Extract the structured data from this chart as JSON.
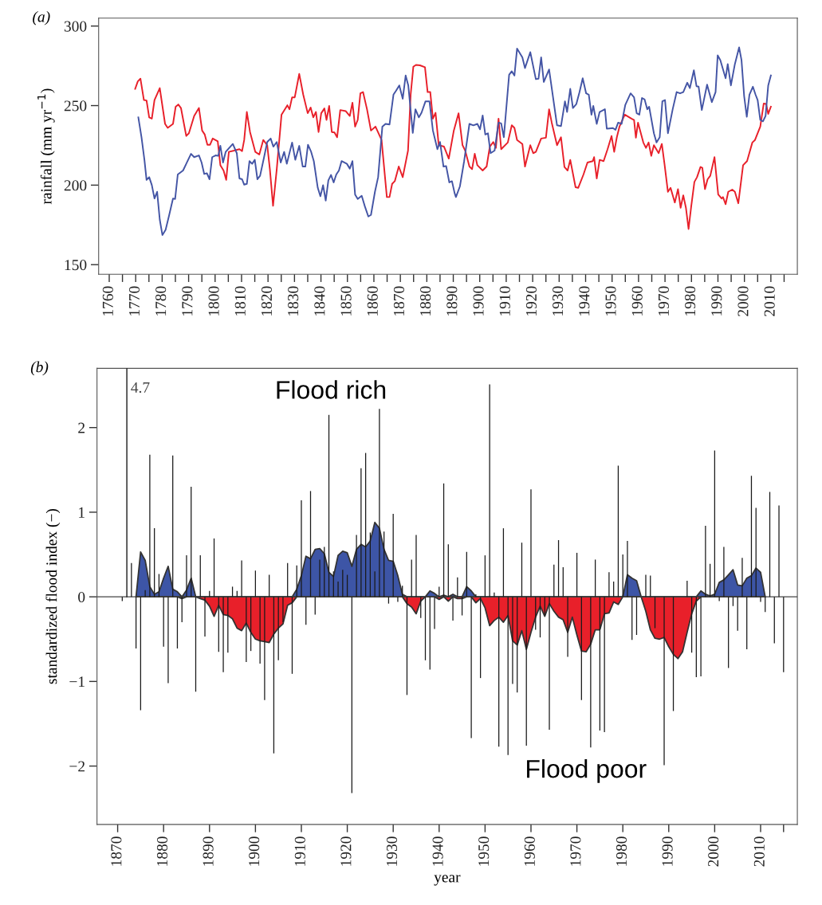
{
  "chart_data": [
    {
      "type": "line",
      "title": "(a)",
      "ylabel": "rainfall (mm yr$^{−1}$)",
      "xlim": [
        1756,
        2020
      ],
      "ylim": [
        144,
        305
      ],
      "xticks": [
        1760,
        {
          "value": 1765,
          "label": null
        },
        1770,
        {
          "value": 1775,
          "label": null
        },
        1780,
        {
          "value": 1785,
          "label": null
        },
        1790,
        {
          "value": 1795,
          "label": null
        },
        1800,
        {
          "value": 1805,
          "label": null
        },
        1810,
        {
          "value": 1815,
          "label": null
        },
        1820,
        {
          "value": 1825,
          "label": null
        },
        1830,
        {
          "value": 1835,
          "label": null
        },
        1840,
        {
          "value": 1845,
          "label": null
        },
        1850,
        {
          "value": 1855,
          "label": null
        },
        1860,
        {
          "value": 1865,
          "label": null
        },
        1870,
        {
          "value": 1875,
          "label": null
        },
        1880,
        {
          "value": 1885,
          "label": null
        },
        1890,
        {
          "value": 1895,
          "label": null
        },
        1900,
        {
          "value": 1905,
          "label": null
        },
        1910,
        {
          "value": 1915,
          "label": null
        },
        1920,
        {
          "value": 1925,
          "label": null
        },
        1930,
        {
          "value": 1935,
          "label": null
        },
        1940,
        {
          "value": 1945,
          "label": null
        },
        1950,
        {
          "value": 1955,
          "label": null
        },
        1960,
        {
          "value": 1965,
          "label": null
        },
        1970,
        {
          "value": 1975,
          "label": null
        },
        1980,
        {
          "value": 1985,
          "label": null
        },
        1990,
        {
          "value": 1995,
          "label": null
        },
        2000,
        {
          "value": 2005,
          "label": null
        },
        2010,
        {
          "value": 2015,
          "label": null
        }
      ],
      "yticks": [
        150,
        200,
        250,
        300
      ],
      "series": [
        {
          "color": "#e8202a",
          "x": [
            1769.8,
            1770.8,
            1771.8,
            1773.1,
            1774.1,
            1775.1,
            1776.1,
            1777.1,
            1779.1,
            1781.1,
            1782.1,
            1784.1,
            1785.1,
            1786.1,
            1787.1,
            1789.1,
            1790.1,
            1792.1,
            1793.9,
            1795.1,
            1796.1,
            1797.1,
            1798.1,
            1799.1,
            1801.0,
            1802.0,
            1803.2,
            1804.2,
            1805.2,
            1807.2,
            1809.2,
            1810.2,
            1811.0,
            1812.0,
            1813.2,
            1815.2,
            1816.7,
            1818.2,
            1819.7,
            1820.7,
            1821.9,
            1823.3,
            1825.1,
            1827.3,
            1828.1,
            1829.1,
            1830.1,
            1831.8,
            1833.3,
            1835.0,
            1836.1,
            1837.1,
            1838.1,
            1839.1,
            1840.1,
            1841.3,
            1842.1,
            1843.1,
            1844.1,
            1845.1,
            1846.1,
            1847.3,
            1849.4,
            1850.9,
            1851.9,
            1852.9,
            1853.9,
            1854.9,
            1855.9,
            1857.4,
            1858.9,
            1860.6,
            1862.9,
            1864.9,
            1865.9,
            1866.9,
            1867.9,
            1869.4,
            1870.9,
            1872.9,
            1873.9,
            1874.9,
            1875.9,
            1877.4,
            1879.3,
            1880.3,
            1881.3,
            1882.3,
            1883.3,
            1884.5,
            1886.5,
            1888.3,
            1890.2,
            1892.0,
            1893.5,
            1894.5,
            1896.1,
            1897.1,
            1898.1,
            1899.1,
            1901.1,
            1902.6,
            1903.8,
            1905.1,
            1906.1,
            1907.1,
            1908.1,
            1910.6,
            1912.1,
            1913.1,
            1914.1,
            1916.1,
            1917.1,
            1919.1,
            1920.2,
            1921.2,
            1923.2,
            1925.0,
            1926.2,
            1927.2,
            1929.2,
            1930.7,
            1932.0,
            1933.2,
            1934.2,
            1936.2,
            1937.2,
            1939.2,
            1940.7,
            1942.7,
            1943.2,
            1944.2,
            1945.3,
            1946.8,
            1948.3,
            1949.8,
            1950.8,
            1951.8,
            1952.8,
            1954.8,
            1957.3,
            1958.3,
            1959.0,
            1959.8,
            1961.8,
            1962.8,
            1963.8,
            1964.8,
            1965.8,
            1967.6,
            1968.8,
            1969.8,
            1971.1,
            1972.1,
            1973.7,
            1974.9,
            1975.9,
            1976.9,
            1977.9,
            1978.9,
            1979.9,
            1981.1,
            1982.1,
            1983.4,
            1984.1,
            1985.1,
            1986.1,
            1987.1,
            1988.7,
            1990.1,
            1991.4,
            1991.9,
            1992.9,
            1993.9,
            1995.4,
            1996.4,
            1997.7,
            1999.5,
            2001.0,
            2003.0,
            2004.0,
            2006.0,
            2007.3,
            2008.2,
            2009.0,
            2010.0
          ],
          "values": [
            260.5,
            265.2,
            266.9,
            253.5,
            253.2,
            242.6,
            241.8,
            253.5,
            261.0,
            238.5,
            236.0,
            238.5,
            249.3,
            250.7,
            248.5,
            230.9,
            232.6,
            243.5,
            248.5,
            234.3,
            231.8,
            225.4,
            225.4,
            229.3,
            227.6,
            212.5,
            209.2,
            203.3,
            220.9,
            221.7,
            222.6,
            221.4,
            228.4,
            246.0,
            233.4,
            220.9,
            219.2,
            228.4,
            225.1,
            210.0,
            187.0,
            210.0,
            244.3,
            250.2,
            247.7,
            255.2,
            255.2,
            269.9,
            256.9,
            245.2,
            248.8,
            242.6,
            246.0,
            233.4,
            245.2,
            248.2,
            241.0,
            249.8,
            233.4,
            233.1,
            230.1,
            247.2,
            246.5,
            243.5,
            251.8,
            236.8,
            241.0,
            257.7,
            258.5,
            247.7,
            234.3,
            236.8,
            228.4,
            192.5,
            192.5,
            200.8,
            202.5,
            211.7,
            205.0,
            221.7,
            256.9,
            274.4,
            275.6,
            275.3,
            274.1,
            258.5,
            258.5,
            241.8,
            245.5,
            225.1,
            224.2,
            216.7,
            234.3,
            245.2,
            225.1,
            221.7,
            211.7,
            210.0,
            219.7,
            212.5,
            209.2,
            211.7,
            224.2,
            227.1,
            223.4,
            241.8,
            222.6,
            226.8,
            237.6,
            236.0,
            228.4,
            225.9,
            211.7,
            225.1,
            220.1,
            220.9,
            229.3,
            229.8,
            247.7,
            239.3,
            225.1,
            230.1,
            211.4,
            209.2,
            215.9,
            198.7,
            198.3,
            206.7,
            214.2,
            215.1,
            217.6,
            204.2,
            215.9,
            215.1,
            222.6,
            230.9,
            220.9,
            230.1,
            236.8,
            244.3,
            241.8,
            241.0,
            229.8,
            239.3,
            226.8,
            223.4,
            226.8,
            218.4,
            225.1,
            220.1,
            225.9,
            213.4,
            195.8,
            198.3,
            189.1,
            197.5,
            185.8,
            193.6,
            185.8,
            172.4,
            186.6,
            202.0,
            205.0,
            211.4,
            210.9,
            197.5,
            203.7,
            205.9,
            217.6,
            194.1,
            191.6,
            192.5,
            188.0,
            195.8,
            197.2,
            195.8,
            188.6,
            212.5,
            215.1,
            226.8,
            228.4,
            236.8,
            251.3,
            251.0,
            244.8,
            249.3
          ]
        },
        {
          "color": "#4455a5",
          "x": [
            1771.0,
            1772.2,
            1773.3,
            1774.1,
            1775.1,
            1776.1,
            1777.1,
            1778.1,
            1779.1,
            1780.1,
            1781.3,
            1782.6,
            1784.1,
            1784.9,
            1785.9,
            1787.9,
            1789.1,
            1790.9,
            1792.1,
            1793.9,
            1794.9,
            1795.9,
            1796.9,
            1797.9,
            1798.9,
            1800.2,
            1801.2,
            1802.0,
            1803.0,
            1804.0,
            1806.7,
            1808.2,
            1809.2,
            1810.2,
            1811.0,
            1812.0,
            1813.0,
            1814.0,
            1815.0,
            1816.0,
            1817.0,
            1818.4,
            1819.7,
            1821.0,
            1822.0,
            1823.3,
            1824.8,
            1826.1,
            1827.1,
            1829.1,
            1830.3,
            1831.8,
            1833.1,
            1834.1,
            1835.1,
            1836.3,
            1837.3,
            1838.8,
            1839.8,
            1840.8,
            1841.8,
            1842.8,
            1843.8,
            1844.8,
            1845.8,
            1846.8,
            1847.8,
            1849.8,
            1850.9,
            1851.9,
            1852.9,
            1853.9,
            1855.4,
            1856.6,
            1857.9,
            1858.9,
            1860.4,
            1861.6,
            1863.2,
            1864.4,
            1865.9,
            1867.4,
            1868.4,
            1869.6,
            1870.9,
            1872.0,
            1873.0,
            1874.7,
            1875.7,
            1877.0,
            1878.0,
            1879.5,
            1881.0,
            1882.3,
            1884.0,
            1885.0,
            1886.3,
            1887.3,
            1888.5,
            1889.5,
            1890.5,
            1891.0,
            1892.5,
            1894.1,
            1896.1,
            1897.6,
            1899.1,
            1900.1,
            1901.1,
            1902.1,
            1903.1,
            1904.1,
            1905.6,
            1907.1,
            1908.1,
            1909.1,
            1911.1,
            1912.1,
            1913.1,
            1914.1,
            1916.1,
            1917.1,
            1919.1,
            1921.2,
            1922.2,
            1923.2,
            1924.2,
            1926.2,
            1929.2,
            1930.7,
            1932.2,
            1933.0,
            1934.2,
            1935.2,
            1936.5,
            1937.7,
            1938.9,
            1940.2,
            1941.2,
            1942.2,
            1942.9,
            1944.2,
            1945.3,
            1947.3,
            1948.0,
            1950.3,
            1951.3,
            1952.3,
            1953.6,
            1955.0,
            1957.0,
            1958.3,
            1959.3,
            1960.3,
            1961.3,
            1962.3,
            1963.3,
            1964.0,
            1965.8,
            1966.8,
            1968.0,
            1969.0,
            1970.0,
            1971.1,
            1972.9,
            1974.4,
            1975.7,
            1976.9,
            1978.4,
            1979.4,
            1980.9,
            1981.9,
            1982.7,
            1983.9,
            1985.9,
            1987.7,
            1989.1,
            1989.9,
            1990.9,
            1992.9,
            1993.7,
            1994.9,
            1996.4,
            1998.0,
            1998.9,
            1999.9,
            2000.9,
            2001.9,
            2003.2,
            2004.2,
            2005.0,
            2006.0,
            2007.0,
            2008.0,
            2009.0,
            2010.0
          ],
          "values": [
            242.6,
            230.1,
            215.9,
            203.3,
            205.0,
            200.0,
            191.6,
            195.8,
            178.3,
            168.6,
            171.9,
            180.8,
            191.6,
            191.3,
            206.7,
            209.2,
            213.4,
            219.7,
            217.6,
            218.7,
            214.2,
            207.0,
            207.5,
            203.7,
            217.6,
            218.7,
            218.4,
            224.7,
            214.2,
            220.9,
            225.9,
            220.1,
            204.2,
            203.7,
            200.3,
            200.8,
            215.1,
            213.4,
            215.9,
            203.7,
            205.9,
            216.7,
            227.1,
            229.3,
            224.2,
            227.1,
            214.2,
            220.9,
            213.4,
            226.8,
            215.9,
            224.7,
            211.7,
            211.7,
            225.4,
            220.9,
            215.1,
            198.3,
            193.0,
            200.0,
            190.3,
            203.0,
            206.4,
            201.7,
            206.7,
            209.2,
            215.1,
            213.4,
            210.4,
            215.1,
            194.1,
            191.3,
            193.3,
            186.6,
            180.3,
            181.3,
            195.8,
            205.0,
            236.8,
            238.5,
            238.1,
            256.9,
            259.4,
            262.7,
            254.3,
            268.9,
            262.7,
            232.8,
            247.7,
            242.6,
            245.5,
            252.7,
            252.7,
            234.3,
            222.6,
            227.1,
            211.7,
            212.0,
            201.7,
            202.5,
            195.0,
            192.5,
            199.2,
            215.1,
            238.5,
            237.6,
            238.5,
            235.1,
            243.8,
            231.8,
            232.6,
            220.1,
            221.7,
            239.3,
            238.8,
            230.1,
            269.4,
            271.6,
            268.9,
            285.8,
            280.3,
            273.6,
            283.6,
            266.6,
            266.9,
            280.3,
            264.9,
            272.7,
            237.6,
            237.1,
            252.7,
            246.0,
            260.5,
            248.5,
            251.0,
            258.5,
            267.2,
            257.7,
            256.9,
            244.3,
            249.8,
            238.5,
            246.0,
            247.7,
            235.5,
            235.9,
            234.8,
            239.3,
            238.5,
            250.5,
            257.7,
            255.2,
            245.2,
            244.3,
            254.8,
            253.8,
            247.7,
            249.3,
            232.6,
            226.8,
            230.1,
            252.7,
            253.5,
            232.6,
            247.7,
            258.5,
            257.7,
            258.5,
            264.4,
            261.0,
            272.2,
            262.2,
            261.9,
            247.2,
            263.2,
            252.2,
            258.5,
            281.6,
            278.6,
            267.2,
            276.1,
            262.7,
            276.1,
            286.6,
            278.6,
            256.0,
            243.0,
            256.9,
            261.9,
            256.9,
            253.5,
            241.0,
            240.1,
            243.5,
            262.7,
            268.9
          ]
        }
      ]
    },
    {
      "type": "bar",
      "title": "(b)",
      "xlabel": "year",
      "ylabel": "standardized flood index (−)",
      "xlim": [
        1865.5,
        2018
      ],
      "ylim": [
        -2.69,
        2.7
      ],
      "xticks": [
        1870,
        1880,
        1890,
        1900,
        1910,
        1920,
        1930,
        1940,
        1950,
        1960,
        1970,
        1980,
        1990,
        2000,
        2010,
        {
          "value": 2015,
          "label": null
        }
      ],
      "yticks": [
        {
          "value": -2,
          "label": "−2"
        },
        {
          "value": -1,
          "label": "−1"
        },
        0,
        1,
        2
      ],
      "ref_lines": [
        {
          "axis": "y",
          "value": 0,
          "color": "#444444"
        },
        {
          "axis": "x",
          "value": 1872,
          "color": "#1a1a1a"
        }
      ],
      "annotations": [
        "4.7",
        "Flood rich",
        "Flood poor"
      ],
      "series": [
        {
          "type": "area",
          "color": "#3d55a6",
          "x": [
            1874,
            1875,
            1876,
            1877,
            1878,
            1879,
            1880,
            1881,
            1882,
            1883,
            1884,
            1885,
            1886,
            1887,
            1888,
            1889,
            1890,
            1891,
            1892,
            1893,
            1894,
            1895,
            1896,
            1897,
            1898,
            1899,
            1900,
            1901,
            1902,
            1903,
            1904,
            1905,
            1906,
            1907,
            1908,
            1909,
            1910,
            1911,
            1912,
            1913,
            1914,
            1915,
            1916,
            1917,
            1918,
            1919,
            1920,
            1921,
            1922,
            1923,
            1924,
            1925,
            1926,
            1927,
            1928,
            1929,
            1930,
            1931,
            1932,
            1933,
            1934,
            1935,
            1936,
            1937,
            1938,
            1939,
            1940,
            1941,
            1942,
            1943,
            1944,
            1945,
            1946,
            1947,
            1948,
            1949,
            1950,
            1951,
            1952,
            1953,
            1954,
            1955,
            1956,
            1957,
            1958,
            1959,
            1960,
            1961,
            1962,
            1963,
            1964,
            1965,
            1966,
            1967,
            1968,
            1969,
            1970,
            1971,
            1972,
            1973,
            1974,
            1975,
            1976,
            1977,
            1978,
            1979,
            1980,
            1981,
            1982,
            1983,
            1984,
            1985,
            1986,
            1987,
            1988,
            1989,
            1990,
            1991,
            1992,
            1993,
            1994,
            1995,
            1996,
            1997,
            1998,
            1999,
            2000,
            2001,
            2002,
            2003,
            2004,
            2005,
            2006,
            2007,
            2008,
            2009,
            2010,
            2011
          ],
          "values": [
            0,
            0.53,
            0.43,
            0.12,
            0.03,
            0.06,
            0.22,
            0.36,
            0.09,
            0.06,
            0,
            0.08,
            0.22,
            0,
            0,
            0,
            0,
            0,
            0,
            0,
            0,
            0,
            0,
            0,
            0,
            0,
            0,
            0,
            0,
            0,
            0,
            0,
            0,
            0,
            0,
            0.09,
            0.25,
            0.48,
            0.45,
            0.56,
            0.57,
            0.51,
            0.29,
            0.24,
            0.49,
            0.54,
            0.52,
            0.36,
            0.56,
            0.62,
            0.59,
            0.66,
            0.88,
            0.81,
            0.56,
            0.43,
            0.42,
            0.25,
            0.03,
            0,
            0,
            0,
            0,
            0,
            0.07,
            0.04,
            0,
            0.02,
            0,
            0.03,
            0,
            0,
            0.12,
            0.07,
            0,
            0,
            0,
            0,
            0,
            0,
            0,
            0,
            0,
            0,
            0,
            0,
            0,
            0,
            0,
            0,
            0,
            0,
            0,
            0,
            0,
            0,
            0,
            0,
            0,
            0,
            0,
            0,
            0,
            0,
            0,
            0,
            0,
            0.26,
            0.22,
            0.19,
            0,
            0,
            0,
            0,
            0,
            0,
            0,
            0,
            0,
            0,
            0,
            0,
            0,
            0.07,
            0.03,
            0.01,
            0.03,
            0.17,
            0.2,
            0.26,
            0.32,
            0.14,
            0.13,
            0.22,
            0.25,
            0.34,
            0.29,
            0
          ]
        },
        {
          "type": "area",
          "color": "#e8202a",
          "x": [
            1874,
            1875,
            1876,
            1877,
            1878,
            1879,
            1880,
            1881,
            1882,
            1883,
            1884,
            1885,
            1886,
            1887,
            1888,
            1889,
            1890,
            1891,
            1892,
            1893,
            1894,
            1895,
            1896,
            1897,
            1898,
            1899,
            1900,
            1901,
            1902,
            1903,
            1904,
            1905,
            1906,
            1907,
            1908,
            1909,
            1910,
            1911,
            1912,
            1913,
            1914,
            1915,
            1916,
            1917,
            1918,
            1919,
            1920,
            1921,
            1922,
            1923,
            1924,
            1925,
            1926,
            1927,
            1928,
            1929,
            1930,
            1931,
            1932,
            1933,
            1934,
            1935,
            1936,
            1937,
            1938,
            1939,
            1940,
            1941,
            1942,
            1943,
            1944,
            1945,
            1946,
            1947,
            1948,
            1949,
            1950,
            1951,
            1952,
            1953,
            1954,
            1955,
            1956,
            1957,
            1958,
            1959,
            1960,
            1961,
            1962,
            1963,
            1964,
            1965,
            1966,
            1967,
            1968,
            1969,
            1970,
            1971,
            1972,
            1973,
            1974,
            1975,
            1976,
            1977,
            1978,
            1979,
            1980,
            1981,
            1982,
            1983,
            1984,
            1985,
            1986,
            1987,
            1988,
            1989,
            1990,
            1991,
            1992,
            1993,
            1994,
            1995,
            1996,
            1997,
            1998,
            1999,
            2000,
            2001,
            2002,
            2003,
            2004,
            2005,
            2006,
            2007,
            2008,
            2009,
            2010,
            2011
          ],
          "values": [
            0,
            0,
            0,
            0,
            0,
            0,
            0,
            0,
            0,
            0,
            -0.02,
            0,
            0,
            0,
            -0.02,
            -0.04,
            -0.11,
            -0.23,
            -0.1,
            -0.21,
            -0.22,
            -0.26,
            -0.37,
            -0.4,
            -0.31,
            -0.42,
            -0.5,
            -0.52,
            -0.53,
            -0.54,
            -0.44,
            -0.37,
            -0.32,
            -0.1,
            -0.07,
            0,
            0,
            0,
            0,
            0,
            0,
            0,
            0,
            0,
            0,
            0,
            0,
            0,
            0,
            0,
            0,
            0,
            0,
            0,
            0,
            0,
            0,
            0,
            0,
            -0.08,
            -0.12,
            -0.2,
            -0.05,
            0,
            0,
            0,
            -0.03,
            0,
            -0.05,
            0,
            -0.02,
            -0.02,
            0,
            0,
            -0.07,
            -0.02,
            -0.13,
            -0.34,
            -0.28,
            -0.24,
            -0.3,
            -0.22,
            -0.52,
            -0.57,
            -0.4,
            -0.62,
            -0.42,
            -0.24,
            -0.11,
            -0.23,
            -0.08,
            -0.17,
            -0.24,
            -0.27,
            -0.42,
            -0.24,
            -0.45,
            -0.64,
            -0.65,
            -0.56,
            -0.39,
            -0.39,
            -0.2,
            -0.19,
            -0.06,
            -0.09,
            0,
            0,
            0,
            0,
            0,
            -0.17,
            -0.39,
            -0.49,
            -0.5,
            -0.48,
            -0.59,
            -0.68,
            -0.73,
            -0.65,
            -0.42,
            -0.2,
            -0.05,
            0,
            0,
            0,
            0,
            0,
            0,
            0,
            0,
            0,
            0,
            0,
            0,
            0,
            0,
            0
          ]
        },
        {
          "type": "bar",
          "color": "#1a1a1a",
          "x": [
            1871,
            1872,
            1873,
            1874,
            1875,
            1876,
            1877,
            1878,
            1879,
            1880,
            1881,
            1882,
            1883,
            1884,
            1885,
            1886,
            1887,
            1888,
            1889,
            1890,
            1891,
            1892,
            1893,
            1894,
            1895,
            1896,
            1897,
            1898,
            1899,
            1900,
            1901,
            1902,
            1903,
            1904,
            1905,
            1906,
            1907,
            1908,
            1909,
            1910,
            1911,
            1912,
            1913,
            1914,
            1915,
            1916,
            1917,
            1918,
            1919,
            1920,
            1921,
            1922,
            1923,
            1924,
            1925,
            1926,
            1927,
            1928,
            1929,
            1930,
            1931,
            1932,
            1933,
            1934,
            1935,
            1936,
            1937,
            1938,
            1939,
            1940,
            1941,
            1942,
            1943,
            1944,
            1945,
            1946,
            1947,
            1948,
            1949,
            1950,
            1951,
            1952,
            1953,
            1954,
            1955,
            1956,
            1957,
            1958,
            1959,
            1960,
            1961,
            1962,
            1963,
            1964,
            1965,
            1966,
            1967,
            1968,
            1970,
            1971,
            1973,
            1974,
            1975,
            1976,
            1977,
            1978,
            1979,
            1980,
            1981,
            1982,
            1983,
            1985,
            1986,
            1987,
            1989,
            1991,
            1994,
            1995,
            1996,
            1997,
            1998,
            1999,
            2000,
            2001,
            2002,
            2003,
            2004,
            2005,
            2006,
            2007,
            2008,
            2009,
            2010,
            2011,
            2012,
            2013,
            2014,
            2015
          ],
          "values": [
            -0.05,
            null,
            0.4,
            -0.61,
            -1.34,
            0.08,
            1.68,
            0.81,
            0.27,
            -0.59,
            -1.02,
            1.67,
            -0.61,
            -0.3,
            0.49,
            1.3,
            -1.12,
            0.49,
            -0.47,
            0.07,
            0.69,
            -0.65,
            -0.89,
            -0.66,
            0.12,
            0.07,
            0.43,
            -0.77,
            -0.64,
            0.31,
            -0.79,
            -1.22,
            0.26,
            -1.85,
            -0.75,
            -0.3,
            0.4,
            -0.91,
            0.37,
            1.14,
            -0.33,
            1.25,
            -0.21,
            0.44,
            0.59,
            2.15,
            0.3,
            0.18,
            0.32,
            0.26,
            -2.32,
            0.73,
            1.52,
            1.7,
            0.76,
            0.3,
            2.22,
            0.77,
            -0.08,
            0.98,
            -0.06,
            0.13,
            -1.16,
            0.44,
            0.73,
            -0.25,
            -0.75,
            -0.86,
            -0.38,
            0.12,
            1.34,
            0.62,
            -0.28,
            0.23,
            -0.22,
            0.53,
            -1.67,
            0.03,
            -0.96,
            0.49,
            2.51,
            0.05,
            -1.77,
            0.81,
            -1.87,
            -1.03,
            -1.13,
            0.64,
            -1.76,
            1.27,
            -0.39,
            -0.48,
            -0.22,
            -1.57,
            0.38,
            0.67,
            0.35,
            -0.71,
            0.52,
            -1.22,
            -1.78,
            0.44,
            -1.58,
            -1.6,
            0.29,
            0.18,
            1.55,
            0.5,
            0.66,
            -0.51,
            -0.45,
            0.26,
            0.25,
            -0.37,
            -1.99,
            -1.35,
            0.19,
            -0.66,
            -0.95,
            -0.94,
            0.84,
            0.39,
            1.73,
            -0.05,
            0.59,
            -0.84,
            -0.11,
            -0.4,
            0.46,
            -0.62,
            1.43,
            1.05,
            -0.06,
            -0.18,
            1.24,
            -0.55,
            1.08,
            -0.89
          ]
        }
      ]
    }
  ]
}
